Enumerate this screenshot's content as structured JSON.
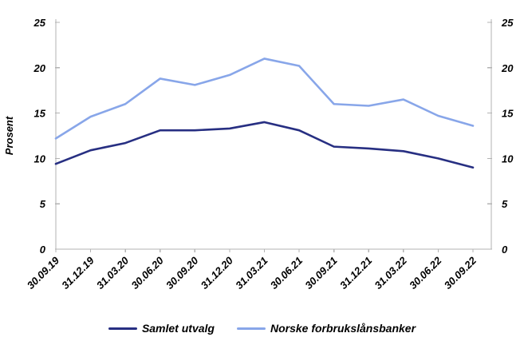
{
  "chart_data": {
    "type": "line",
    "title": "",
    "ylabel": "Prosent",
    "xlabel": "",
    "ylim": [
      0,
      25
    ],
    "y_ticks": [
      0,
      5,
      10,
      15,
      20,
      25
    ],
    "grid": false,
    "legend_position": "bottom",
    "axis_color": "#b3b3b3",
    "label_color": "#000000",
    "background_color": "#ffffff",
    "categories": [
      "30.09.19",
      "31.12.19",
      "31.03.20",
      "30.06.20",
      "30.09.20",
      "31.12.20",
      "31.03.21",
      "30.06.21",
      "30.09.21",
      "31.12.21",
      "31.03.22",
      "30.06.22",
      "30.09.22"
    ],
    "series": [
      {
        "name": "Samlet utvalg",
        "color": "#272f82",
        "values": [
          9.4,
          10.9,
          11.7,
          13.1,
          13.1,
          13.3,
          14.0,
          13.1,
          11.3,
          11.1,
          10.8,
          10.0,
          9.0
        ]
      },
      {
        "name": "Norske forbrukslånsbanker",
        "color": "#88a6e9",
        "values": [
          12.2,
          14.6,
          16.0,
          18.8,
          18.1,
          19.2,
          21.0,
          20.2,
          16.0,
          15.8,
          16.5,
          14.7,
          13.6
        ]
      }
    ]
  }
}
